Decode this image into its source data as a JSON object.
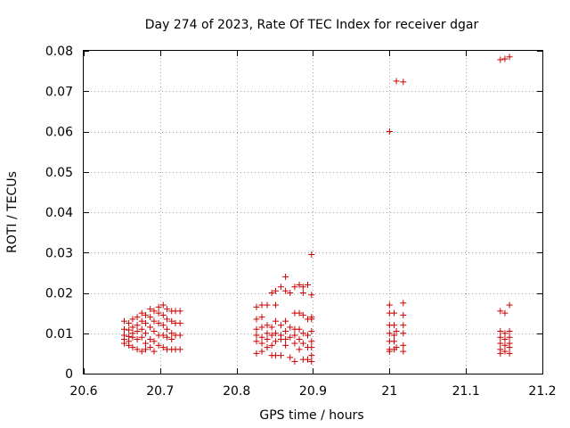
{
  "chart_data": {
    "type": "scatter",
    "title": "Day 274 of 2023, Rate Of TEC Index for receiver dgar",
    "xlabel": "GPS time / hours",
    "ylabel": "ROTI / TECUs",
    "xlim": [
      20.6,
      21.2
    ],
    "ylim": [
      0,
      0.08
    ],
    "xticks": [
      20.6,
      20.7,
      20.8,
      20.9,
      21,
      21.1,
      21.2
    ],
    "xtick_labels": [
      "20.6",
      "20.7",
      "20.8",
      "20.9",
      "21",
      "21.1",
      "21.2"
    ],
    "yticks": [
      0,
      0.01,
      0.02,
      0.03,
      0.04,
      0.05,
      0.06,
      0.07,
      0.08
    ],
    "ytick_labels": [
      "0",
      "0.01",
      "0.02",
      "0.03",
      "0.04",
      "0.05",
      "0.06",
      "0.07",
      "0.08"
    ],
    "grid": true,
    "marker": "+",
    "color": "#cc0000",
    "series": [
      {
        "name": "ROTI",
        "points": [
          [
            20.653,
            0.013
          ],
          [
            20.653,
            0.011
          ],
          [
            20.653,
            0.0095
          ],
          [
            20.653,
            0.0085
          ],
          [
            20.653,
            0.0075
          ],
          [
            20.659,
            0.0125
          ],
          [
            20.659,
            0.0108
          ],
          [
            20.659,
            0.0092
          ],
          [
            20.659,
            0.008
          ],
          [
            20.659,
            0.007
          ],
          [
            20.664,
            0.0135
          ],
          [
            20.664,
            0.0115
          ],
          [
            20.664,
            0.01
          ],
          [
            20.664,
            0.009
          ],
          [
            20.664,
            0.0065
          ],
          [
            20.67,
            0.014
          ],
          [
            20.67,
            0.012
          ],
          [
            20.67,
            0.0105
          ],
          [
            20.67,
            0.0085
          ],
          [
            20.67,
            0.006
          ],
          [
            20.676,
            0.015
          ],
          [
            20.676,
            0.013
          ],
          [
            20.676,
            0.011
          ],
          [
            20.676,
            0.009
          ],
          [
            20.676,
            0.0055
          ],
          [
            20.681,
            0.0145
          ],
          [
            20.681,
            0.0125
          ],
          [
            20.681,
            0.01
          ],
          [
            20.681,
            0.0075
          ],
          [
            20.681,
            0.006
          ],
          [
            20.687,
            0.016
          ],
          [
            20.687,
            0.014
          ],
          [
            20.687,
            0.0115
          ],
          [
            20.687,
            0.0085
          ],
          [
            20.687,
            0.0065
          ],
          [
            20.692,
            0.0155
          ],
          [
            20.692,
            0.013
          ],
          [
            20.692,
            0.0105
          ],
          [
            20.692,
            0.008
          ],
          [
            20.692,
            0.0055
          ],
          [
            20.698,
            0.0165
          ],
          [
            20.698,
            0.015
          ],
          [
            20.698,
            0.0125
          ],
          [
            20.698,
            0.0095
          ],
          [
            20.698,
            0.007
          ],
          [
            20.704,
            0.017
          ],
          [
            20.704,
            0.0145
          ],
          [
            20.704,
            0.012
          ],
          [
            20.704,
            0.0095
          ],
          [
            20.704,
            0.0065
          ],
          [
            20.709,
            0.016
          ],
          [
            20.709,
            0.0135
          ],
          [
            20.709,
            0.011
          ],
          [
            20.709,
            0.009
          ],
          [
            20.709,
            0.006
          ],
          [
            20.715,
            0.0155
          ],
          [
            20.715,
            0.013
          ],
          [
            20.715,
            0.01
          ],
          [
            20.715,
            0.0085
          ],
          [
            20.715,
            0.006
          ],
          [
            20.72,
            0.0155
          ],
          [
            20.72,
            0.0125
          ],
          [
            20.72,
            0.0095
          ],
          [
            20.72,
            0.006
          ],
          [
            20.726,
            0.0155
          ],
          [
            20.726,
            0.0125
          ],
          [
            20.726,
            0.0095
          ],
          [
            20.726,
            0.006
          ],
          [
            20.826,
            0.0165
          ],
          [
            20.826,
            0.0135
          ],
          [
            20.826,
            0.011
          ],
          [
            20.826,
            0.0095
          ],
          [
            20.826,
            0.008
          ],
          [
            20.826,
            0.005
          ],
          [
            20.833,
            0.017
          ],
          [
            20.833,
            0.014
          ],
          [
            20.833,
            0.0115
          ],
          [
            20.833,
            0.009
          ],
          [
            20.833,
            0.0075
          ],
          [
            20.833,
            0.0055
          ],
          [
            20.84,
            0.017
          ],
          [
            20.84,
            0.012
          ],
          [
            20.84,
            0.01
          ],
          [
            20.84,
            0.0085
          ],
          [
            20.84,
            0.0065
          ],
          [
            20.846,
            0.02
          ],
          [
            20.846,
            0.0115
          ],
          [
            20.846,
            0.0095
          ],
          [
            20.846,
            0.007
          ],
          [
            20.846,
            0.0045
          ],
          [
            20.851,
            0.0205
          ],
          [
            20.851,
            0.017
          ],
          [
            20.851,
            0.013
          ],
          [
            20.851,
            0.01
          ],
          [
            20.851,
            0.008
          ],
          [
            20.851,
            0.0045
          ],
          [
            20.858,
            0.0215
          ],
          [
            20.858,
            0.012
          ],
          [
            20.858,
            0.0095
          ],
          [
            20.858,
            0.0085
          ],
          [
            20.858,
            0.0045
          ],
          [
            20.864,
            0.024
          ],
          [
            20.864,
            0.0205
          ],
          [
            20.864,
            0.013
          ],
          [
            20.864,
            0.0105
          ],
          [
            20.864,
            0.0085
          ],
          [
            20.864,
            0.007
          ],
          [
            20.87,
            0.02
          ],
          [
            20.87,
            0.0115
          ],
          [
            20.87,
            0.009
          ],
          [
            20.87,
            0.004
          ],
          [
            20.876,
            0.0215
          ],
          [
            20.876,
            0.015
          ],
          [
            20.876,
            0.011
          ],
          [
            20.876,
            0.0095
          ],
          [
            20.876,
            0.0075
          ],
          [
            20.876,
            0.003
          ],
          [
            20.882,
            0.022
          ],
          [
            20.882,
            0.015
          ],
          [
            20.882,
            0.011
          ],
          [
            20.882,
            0.0085
          ],
          [
            20.882,
            0.006
          ],
          [
            20.887,
            0.0215
          ],
          [
            20.887,
            0.02
          ],
          [
            20.887,
            0.0145
          ],
          [
            20.887,
            0.01
          ],
          [
            20.887,
            0.0075
          ],
          [
            20.887,
            0.0035
          ],
          [
            20.893,
            0.022
          ],
          [
            20.893,
            0.0135
          ],
          [
            20.893,
            0.0095
          ],
          [
            20.893,
            0.0065
          ],
          [
            20.893,
            0.0035
          ],
          [
            20.898,
            0.0295
          ],
          [
            20.898,
            0.0195
          ],
          [
            20.898,
            0.014
          ],
          [
            20.898,
            0.0135
          ],
          [
            20.898,
            0.0105
          ],
          [
            20.898,
            0.008
          ],
          [
            20.898,
            0.0065
          ],
          [
            20.898,
            0.0045
          ],
          [
            20.898,
            0.003
          ],
          [
            21.0,
            0.06
          ],
          [
            21.0,
            0.017
          ],
          [
            21.0,
            0.015
          ],
          [
            21.0,
            0.012
          ],
          [
            21.0,
            0.01
          ],
          [
            21.0,
            0.008
          ],
          [
            21.0,
            0.006
          ],
          [
            21.0,
            0.0055
          ],
          [
            21.006,
            0.015
          ],
          [
            21.006,
            0.012
          ],
          [
            21.006,
            0.0095
          ],
          [
            21.006,
            0.008
          ],
          [
            21.006,
            0.006
          ],
          [
            21.009,
            0.0725
          ],
          [
            21.009,
            0.0105
          ],
          [
            21.009,
            0.0065
          ],
          [
            21.018,
            0.0723
          ],
          [
            21.018,
            0.0175
          ],
          [
            21.018,
            0.0145
          ],
          [
            21.018,
            0.012
          ],
          [
            21.018,
            0.01
          ],
          [
            21.018,
            0.007
          ],
          [
            21.018,
            0.0055
          ],
          [
            21.145,
            0.0778
          ],
          [
            21.145,
            0.0155
          ],
          [
            21.145,
            0.0105
          ],
          [
            21.145,
            0.009
          ],
          [
            21.145,
            0.0075
          ],
          [
            21.145,
            0.006
          ],
          [
            21.145,
            0.005
          ],
          [
            21.151,
            0.078
          ],
          [
            21.151,
            0.015
          ],
          [
            21.151,
            0.01
          ],
          [
            21.151,
            0.0085
          ],
          [
            21.151,
            0.007
          ],
          [
            21.151,
            0.0055
          ],
          [
            21.157,
            0.0785
          ],
          [
            21.157,
            0.017
          ],
          [
            21.157,
            0.0105
          ],
          [
            21.157,
            0.009
          ],
          [
            21.157,
            0.0075
          ],
          [
            21.157,
            0.0065
          ],
          [
            21.157,
            0.005
          ]
        ]
      }
    ]
  }
}
